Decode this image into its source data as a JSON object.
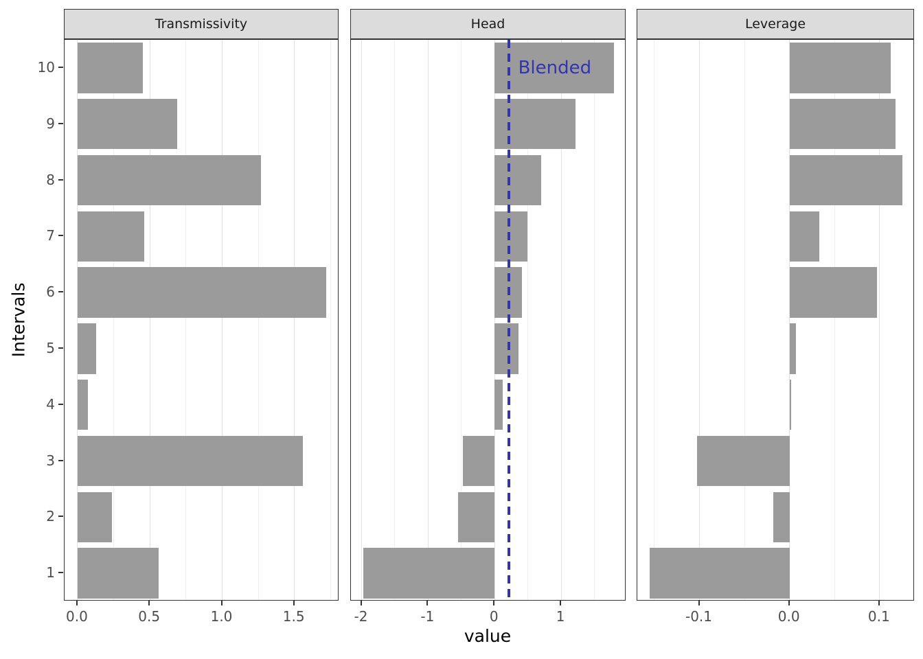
{
  "figure": {
    "x_axis_title": "value",
    "y_axis_title": "Intervals",
    "colors": {
      "bar": "#9B9B9B",
      "grid_major": "#E2E2E2",
      "grid_minor": "#F0F0F0",
      "panel_border": "#333333",
      "strip_background": "#DCDCDC",
      "axis_text": "#4D4D4D",
      "axis_title": "#000000",
      "annotation": "#3434AE"
    }
  },
  "chart_data": {
    "type": "bar",
    "orientation": "horizontal",
    "title": "",
    "xlabel": "value",
    "ylabel": "Intervals",
    "categories": [
      "1",
      "2",
      "3",
      "4",
      "5",
      "6",
      "7",
      "8",
      "9",
      "10"
    ],
    "bar_color": "#9B9B9B",
    "legend": "none",
    "grid": "on",
    "panels": [
      {
        "title": "Transmissivity",
        "xlim": [
          -0.09,
          1.81
        ],
        "major_ticks": [
          0.0,
          0.5,
          1.0,
          1.5
        ],
        "tick_labels": [
          "0.0",
          "0.5",
          "1.0",
          "1.5"
        ],
        "minor_gridlines": [
          0.25,
          0.75,
          1.25,
          1.75
        ],
        "values": [
          0.56,
          0.24,
          1.56,
          0.07,
          0.13,
          1.72,
          0.46,
          1.27,
          0.69,
          0.45
        ]
      },
      {
        "title": "Head",
        "xlim": [
          -2.16,
          1.98
        ],
        "major_ticks": [
          -2,
          -1,
          0,
          1
        ],
        "tick_labels": [
          "-2",
          "-1",
          "0",
          "1"
        ],
        "minor_gridlines": [
          -1.5,
          -0.5,
          0.5,
          1.5
        ],
        "values": [
          -1.97,
          -0.55,
          -0.48,
          0.12,
          0.36,
          0.41,
          0.49,
          0.7,
          1.22,
          1.79
        ],
        "vline": {
          "x": 0.21,
          "style": "dashed",
          "color": "#3434AE",
          "label": "Blended"
        }
      },
      {
        "title": "Leverage",
        "xlim": [
          -0.169,
          0.139
        ],
        "major_ticks": [
          -0.1,
          0.0,
          0.1
        ],
        "tick_labels": [
          "-0.1",
          "0.0",
          "0.1"
        ],
        "minor_gridlines": [
          -0.15,
          -0.05,
          0.05
        ],
        "values": [
          -0.155,
          -0.018,
          -0.103,
          0.001,
          0.007,
          0.097,
          0.033,
          0.125,
          0.118,
          0.112
        ]
      }
    ]
  }
}
